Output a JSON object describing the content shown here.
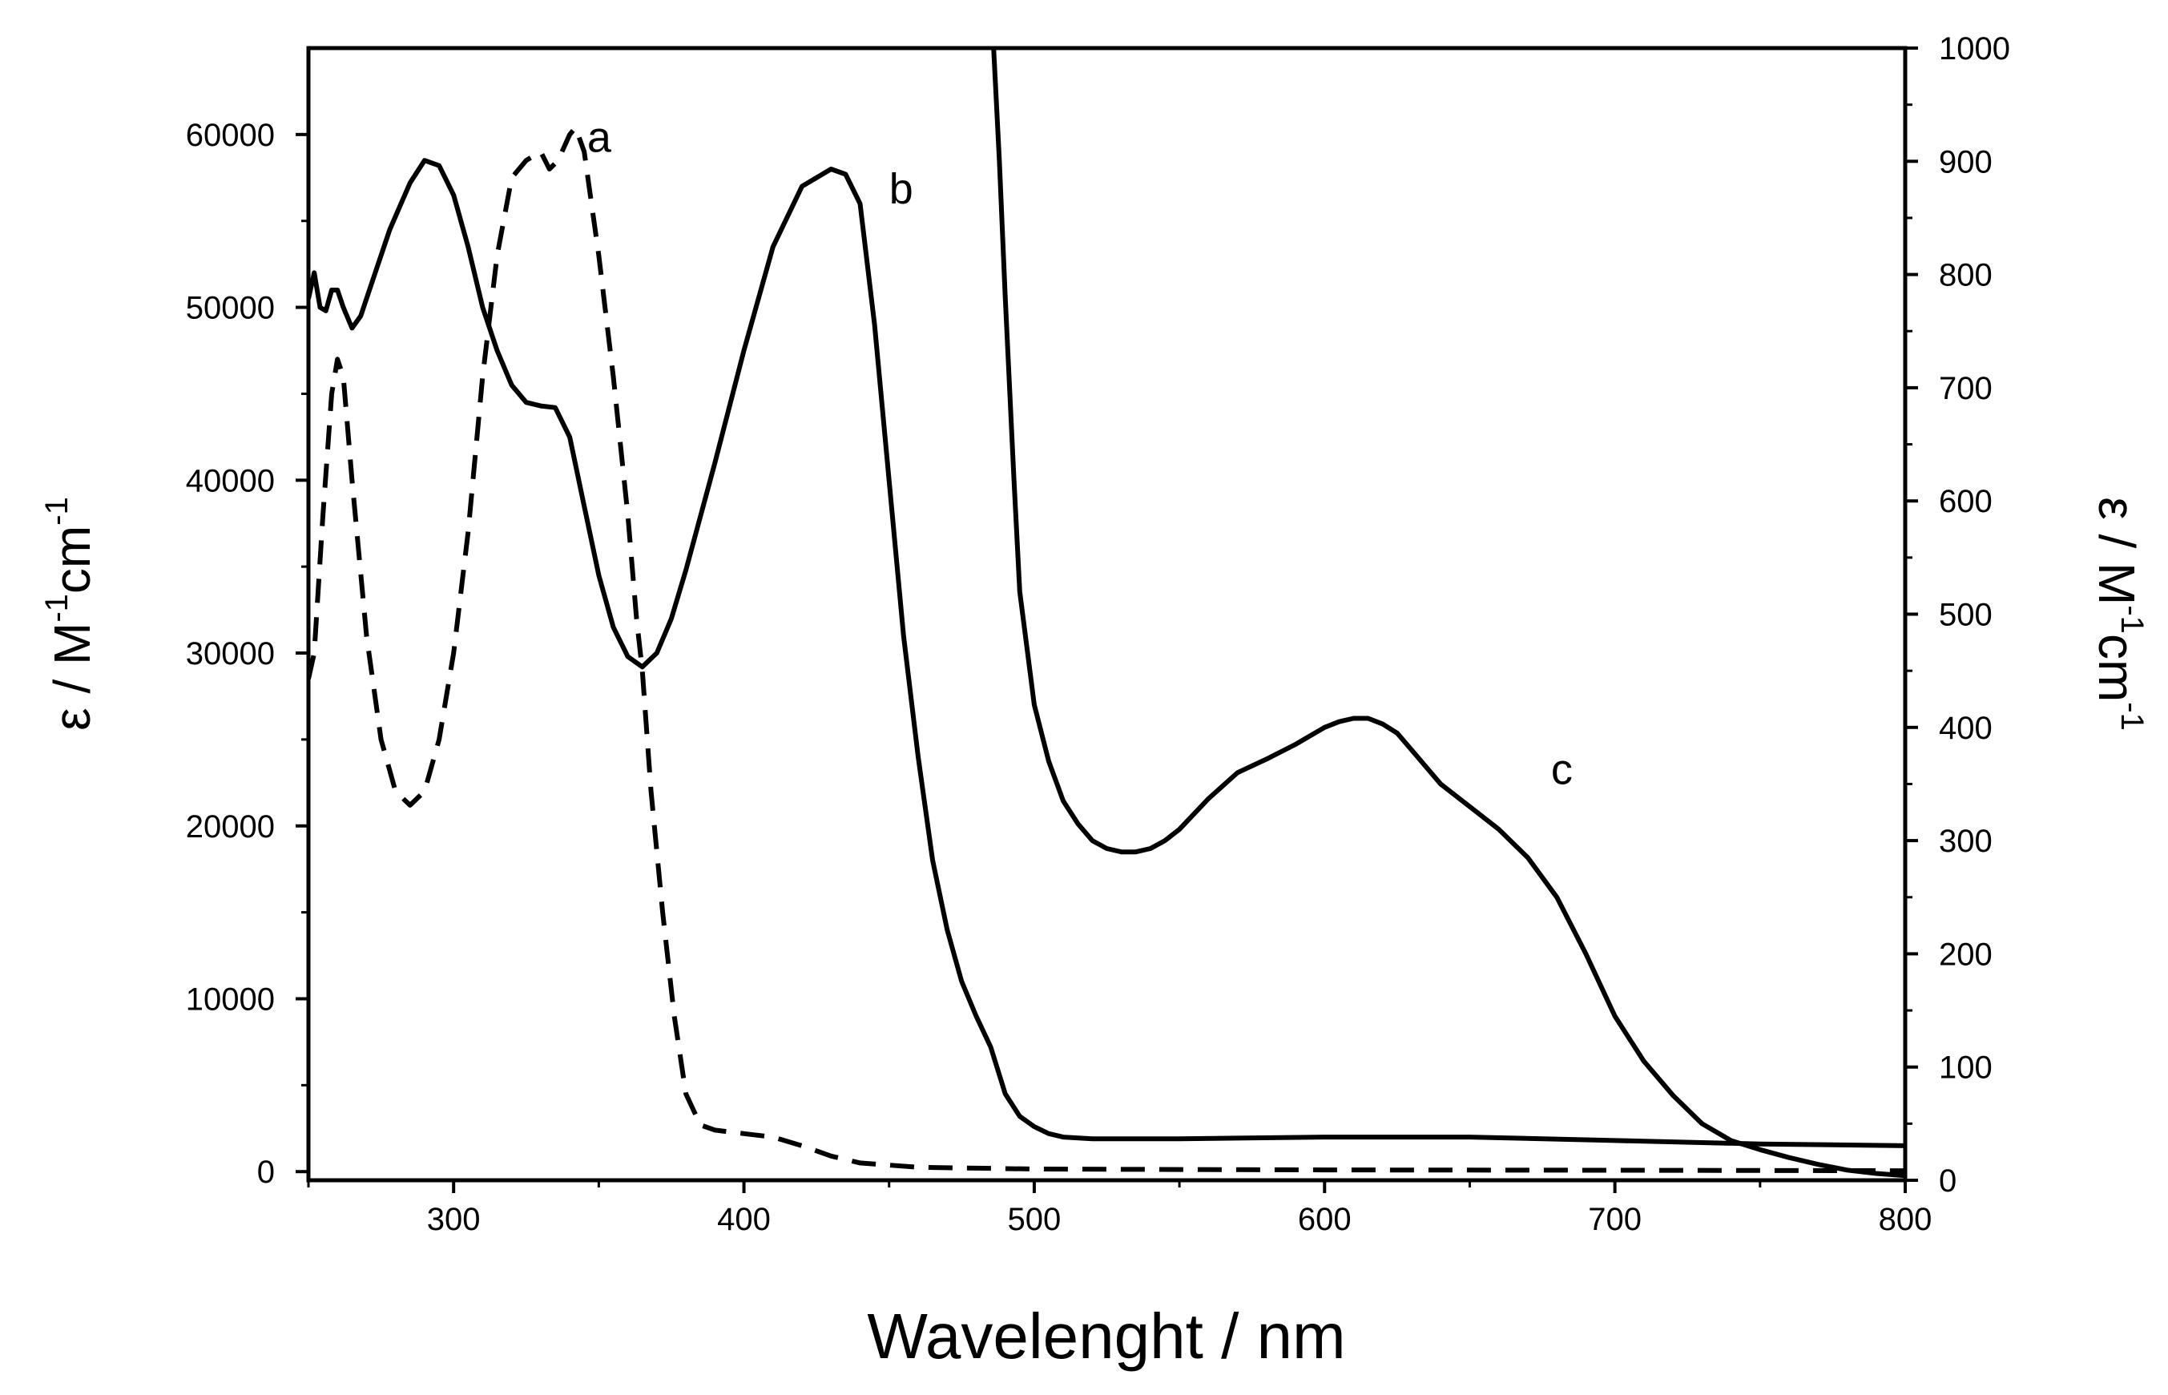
{
  "chart_data": {
    "type": "line",
    "title": "",
    "xlabel": "Wavelenght / nm",
    "ylabel_left": {
      "prefix": "ε / M",
      "sup1": "-1",
      "mid": "cm",
      "sup2": "-1"
    },
    "ylabel_right": {
      "prefix": "ε / M",
      "sup1": "-1",
      "mid": "cm",
      "sup2": "-1"
    },
    "xlim": [
      250,
      800
    ],
    "ylim_left": [
      -500,
      65000
    ],
    "ylim_right": [
      0,
      1000
    ],
    "x_ticks": [
      "300",
      "400",
      "500",
      "600",
      "700",
      "800"
    ],
    "x_tick_values": [
      300,
      400,
      500,
      600,
      700,
      800
    ],
    "y_left_ticks": [
      "0",
      "10000",
      "20000",
      "30000",
      "40000",
      "50000",
      "60000"
    ],
    "y_left_tick_values": [
      0,
      10000,
      20000,
      30000,
      40000,
      50000,
      60000
    ],
    "y_right_ticks": [
      "0",
      "100",
      "200",
      "300",
      "400",
      "500",
      "600",
      "700",
      "800",
      "900",
      "1000"
    ],
    "y_right_tick_values": [
      0,
      100,
      200,
      300,
      400,
      500,
      600,
      700,
      800,
      900,
      1000
    ],
    "grid": false,
    "series": [
      {
        "name": "a",
        "axis": "left",
        "style": "dashed",
        "label_at": [
          346,
          59000
        ],
        "points": [
          [
            250,
            28500
          ],
          [
            252,
            30000
          ],
          [
            255,
            38000
          ],
          [
            258,
            45000
          ],
          [
            260,
            47000
          ],
          [
            262,
            46000
          ],
          [
            265,
            40000
          ],
          [
            270,
            31000
          ],
          [
            275,
            25000
          ],
          [
            280,
            22000
          ],
          [
            285,
            21200
          ],
          [
            290,
            22000
          ],
          [
            295,
            25000
          ],
          [
            300,
            30000
          ],
          [
            305,
            37000
          ],
          [
            310,
            46000
          ],
          [
            315,
            53000
          ],
          [
            320,
            57500
          ],
          [
            325,
            58500
          ],
          [
            330,
            59000
          ],
          [
            333,
            58000
          ],
          [
            336,
            58500
          ],
          [
            340,
            60000
          ],
          [
            342,
            60400
          ],
          [
            345,
            59000
          ],
          [
            350,
            53000
          ],
          [
            355,
            46000
          ],
          [
            360,
            38000
          ],
          [
            363,
            32000
          ],
          [
            365,
            29000
          ],
          [
            368,
            22000
          ],
          [
            372,
            15000
          ],
          [
            376,
            9000
          ],
          [
            380,
            4500
          ],
          [
            385,
            2700
          ],
          [
            390,
            2400
          ],
          [
            400,
            2200
          ],
          [
            410,
            2000
          ],
          [
            420,
            1500
          ],
          [
            430,
            900
          ],
          [
            440,
            500
          ],
          [
            460,
            250
          ],
          [
            500,
            150
          ],
          [
            600,
            100
          ],
          [
            700,
            80
          ],
          [
            800,
            50
          ]
        ]
      },
      {
        "name": "b",
        "axis": "left",
        "style": "solid",
        "label_at": [
          450,
          56000
        ],
        "points": [
          [
            250,
            50500
          ],
          [
            252,
            52000
          ],
          [
            254,
            50000
          ],
          [
            256,
            49800
          ],
          [
            258,
            51000
          ],
          [
            260,
            51000
          ],
          [
            262,
            50000
          ],
          [
            265,
            48800
          ],
          [
            268,
            49500
          ],
          [
            272,
            51500
          ],
          [
            278,
            54500
          ],
          [
            285,
            57200
          ],
          [
            290,
            58500
          ],
          [
            295,
            58200
          ],
          [
            300,
            56500
          ],
          [
            305,
            53500
          ],
          [
            310,
            50000
          ],
          [
            315,
            47500
          ],
          [
            320,
            45500
          ],
          [
            325,
            44500
          ],
          [
            330,
            44300
          ],
          [
            335,
            44200
          ],
          [
            340,
            42500
          ],
          [
            345,
            38500
          ],
          [
            350,
            34500
          ],
          [
            355,
            31500
          ],
          [
            360,
            29800
          ],
          [
            365,
            29200
          ],
          [
            370,
            30000
          ],
          [
            375,
            32000
          ],
          [
            380,
            34800
          ],
          [
            390,
            41000
          ],
          [
            400,
            47500
          ],
          [
            410,
            53500
          ],
          [
            420,
            57000
          ],
          [
            425,
            57500
          ],
          [
            430,
            58000
          ],
          [
            435,
            57700
          ],
          [
            440,
            56000
          ],
          [
            445,
            49000
          ],
          [
            450,
            40000
          ],
          [
            455,
            31000
          ],
          [
            460,
            24000
          ],
          [
            465,
            18000
          ],
          [
            470,
            14000
          ],
          [
            475,
            11000
          ],
          [
            480,
            9000
          ],
          [
            485,
            7200
          ],
          [
            490,
            4500
          ],
          [
            495,
            3200
          ],
          [
            500,
            2600
          ],
          [
            505,
            2200
          ],
          [
            510,
            2000
          ],
          [
            520,
            1900
          ],
          [
            550,
            1900
          ],
          [
            600,
            2000
          ],
          [
            650,
            2000
          ],
          [
            700,
            1800
          ],
          [
            750,
            1600
          ],
          [
            800,
            1500
          ]
        ]
      },
      {
        "name": "c",
        "axis": "right",
        "style": "solid",
        "label_at": [
          678,
          350
        ],
        "points": [
          [
            486,
            1000
          ],
          [
            488,
            900
          ],
          [
            490,
            780
          ],
          [
            493,
            620
          ],
          [
            495,
            520
          ],
          [
            500,
            420
          ],
          [
            505,
            370
          ],
          [
            510,
            335
          ],
          [
            515,
            315
          ],
          [
            520,
            300
          ],
          [
            525,
            293
          ],
          [
            530,
            290
          ],
          [
            535,
            290
          ],
          [
            540,
            293
          ],
          [
            545,
            300
          ],
          [
            550,
            310
          ],
          [
            560,
            337
          ],
          [
            570,
            360
          ],
          [
            580,
            372
          ],
          [
            590,
            385
          ],
          [
            600,
            400
          ],
          [
            605,
            405
          ],
          [
            610,
            408
          ],
          [
            615,
            408
          ],
          [
            620,
            403
          ],
          [
            625,
            395
          ],
          [
            630,
            380
          ],
          [
            635,
            365
          ],
          [
            640,
            350
          ],
          [
            650,
            330
          ],
          [
            660,
            310
          ],
          [
            670,
            285
          ],
          [
            680,
            250
          ],
          [
            690,
            200
          ],
          [
            700,
            145
          ],
          [
            710,
            105
          ],
          [
            720,
            75
          ],
          [
            730,
            50
          ],
          [
            740,
            35
          ],
          [
            750,
            27
          ],
          [
            760,
            20
          ],
          [
            770,
            14
          ],
          [
            780,
            9
          ],
          [
            790,
            6
          ],
          [
            800,
            4
          ]
        ]
      }
    ]
  }
}
